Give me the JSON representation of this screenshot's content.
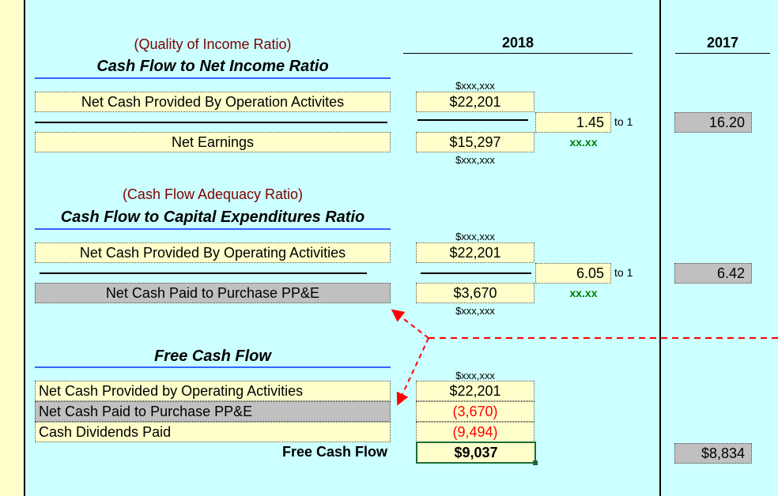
{
  "years": {
    "y2018": "2018",
    "y2017": "2017"
  },
  "section1": {
    "subtitle": "(Quality of Income Ratio)",
    "title": "Cash Flow to Net Income Ratio",
    "numerator_label": "Net Cash Provided By Operation Activites",
    "denominator_label": "Net Earnings",
    "format_top": "$xxx,xxx",
    "format_bottom": "$xxx,xxx",
    "numerator_value": "$22,201",
    "denominator_value": "$15,297",
    "ratio": "1.45",
    "to_one": "to 1",
    "ratio_format": "xx.xx",
    "prior_ratio": "16.20"
  },
  "section2": {
    "subtitle": "(Cash Flow Adequacy Ratio)",
    "title": "Cash Flow to Capital Expenditures Ratio",
    "numerator_label": "Net Cash Provided By Operating Activities",
    "denominator_label": "Net Cash Paid to Purchase PP&E",
    "format_top": "$xxx,xxx",
    "format_bottom": "$xxx,xxx",
    "numerator_value": "$22,201",
    "denominator_value": "$3,670",
    "ratio": "6.05",
    "to_one": "to 1",
    "ratio_format": "xx.xx",
    "prior_ratio": "6.42"
  },
  "section3": {
    "title": "Free Cash Flow",
    "format_top": "$xxx,xxx",
    "rows": [
      {
        "label": "Net Cash Provided by Operating Activities",
        "value": "$22,201"
      },
      {
        "label": "Net Cash Paid to Purchase PP&E",
        "value": "(3,670)"
      },
      {
        "label": "Cash Dividends Paid",
        "value": "(9,494)"
      }
    ],
    "total_label": "Free Cash Flow",
    "total_value": "$9,037",
    "prior_total": "$8,834"
  },
  "colors": {
    "background": "#ccffff",
    "cell": "#ffffcc",
    "gray": "#c0c0c0",
    "negative": "#ff0000",
    "subtitle": "#800000",
    "arrow": "#ff0000"
  }
}
